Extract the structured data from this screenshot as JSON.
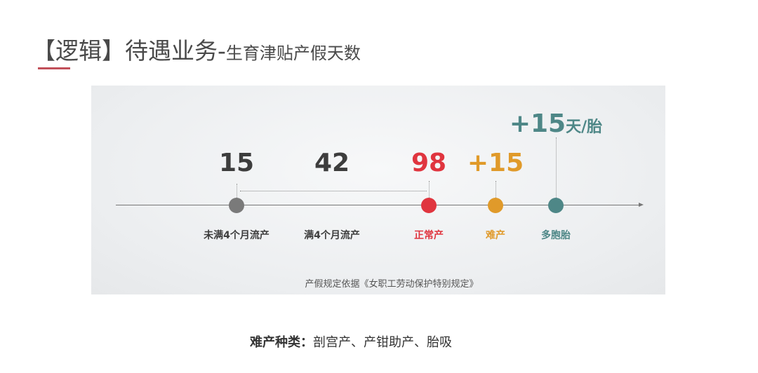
{
  "title": {
    "main": "【逻辑】待遇业务-",
    "sub": "生育津贴产假天数"
  },
  "colors": {
    "gray": "#7a7a7a",
    "red": "#e0353f",
    "orange": "#e09a2a",
    "teal": "#4e8787",
    "dark": "#3d3d3d"
  },
  "timeline": {
    "numbers": [
      "15",
      "42",
      "98",
      "+15"
    ],
    "multi_number": "+15",
    "multi_unit": "天/胎",
    "labels": [
      "未满4个月流产",
      "满4个月流产",
      "正常产",
      "难产",
      "多胞胎"
    ]
  },
  "citation": "产假规定依据《女职工劳动保护特别规定》",
  "footer": {
    "label": "难产种类：",
    "value": "剖宫产、产钳助产、胎吸"
  }
}
